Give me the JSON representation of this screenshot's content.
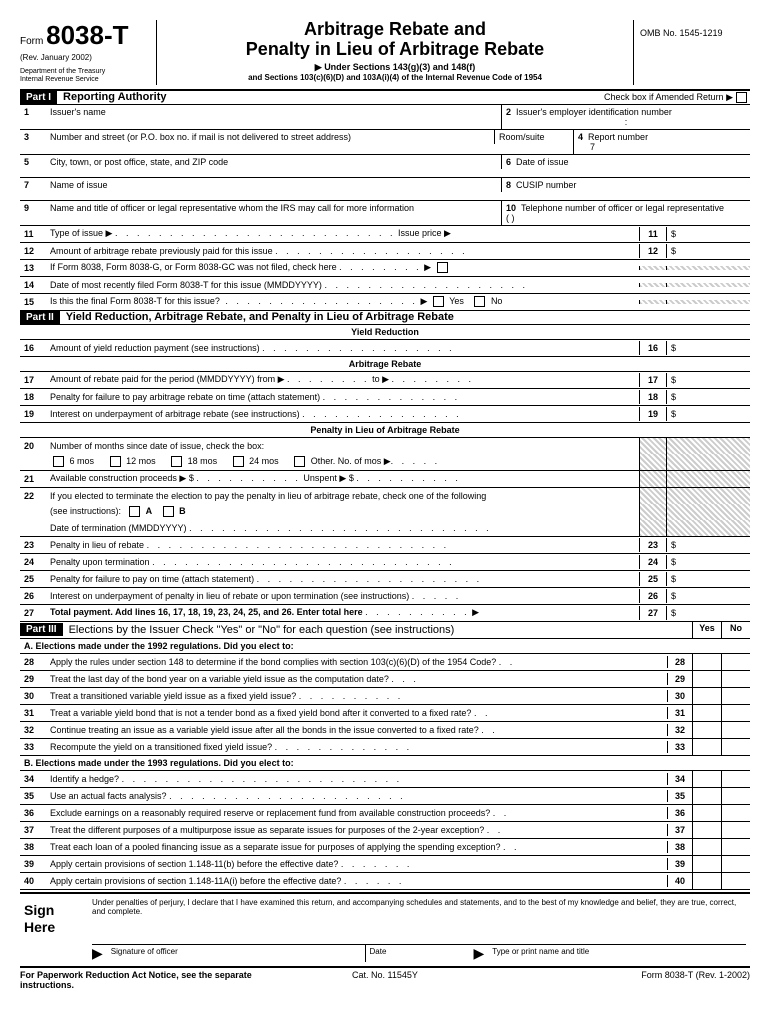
{
  "header": {
    "form": "Form",
    "num": "8038-T",
    "rev": "(Rev. January 2002)",
    "dept": "Department of the Treasury\nInternal Revenue Service",
    "title1": "Arbitrage Rebate and",
    "title2": "Penalty in Lieu of Arbitrage Rebate",
    "sub1": "▶ Under Sections 143(g)(3) and 148(f)",
    "sub2": "and Sections 103(c)(6)(D) and 103A(i)(4) of the Internal Revenue Code of 1954",
    "omb": "OMB No. 1545-1219"
  },
  "p1": {
    "part": "Part I",
    "title": "Reporting Authority",
    "amend": "Check box if Amended Return ▶",
    "r1": {
      "n": "1",
      "l": "Issuer's name"
    },
    "r2": {
      "n": "2",
      "l": "Issuer's employer identification number"
    },
    "r3": {
      "n": "3",
      "l": "Number and street (or P.O. box no. if mail is not delivered to street address)",
      "rm": "Room/suite"
    },
    "r4": {
      "n": "4",
      "l": "Report number",
      "v": "7"
    },
    "r5": {
      "n": "5",
      "l": "City, town, or post office, state, and ZIP code"
    },
    "r6": {
      "n": "6",
      "l": "Date of issue"
    },
    "r7": {
      "n": "7",
      "l": "Name of issue"
    },
    "r8": {
      "n": "8",
      "l": "CUSIP number"
    },
    "r9": {
      "n": "9",
      "l": "Name and title of officer or legal representative whom the IRS may call for more information"
    },
    "r10": {
      "n": "10",
      "l": "Telephone number of officer or legal representative",
      "ph": "(        )"
    },
    "r11": {
      "n": "11",
      "l": "Type of issue ▶",
      "ip": "Issue price  ▶",
      "bn": "11"
    },
    "r12": {
      "n": "12",
      "l": "Amount of arbitrage rebate previously paid for this issue",
      "bn": "12"
    },
    "r13": {
      "n": "13",
      "l": "If Form 8038, Form 8038-G, or Form 8038-GC was not filed, check here"
    },
    "r14": {
      "n": "14",
      "l": "Date of most recently filed Form 8038-T for this issue (MMDDYYYY)"
    },
    "r15": {
      "n": "15",
      "l": "Is this the final Form 8038-T for this issue?",
      "y": "Yes",
      "no": "No"
    }
  },
  "p2": {
    "part": "Part II",
    "title": "Yield Reduction, Arbitrage Rebate, and Penalty in Lieu of Arbitrage Rebate",
    "s1": "Yield Reduction",
    "s2": "Arbitrage Rebate",
    "s3": "Penalty in Lieu of Arbitrage Rebate",
    "r16": {
      "n": "16",
      "l": "Amount of yield reduction payment (see instructions)",
      "bn": "16"
    },
    "r17": {
      "n": "17",
      "l": "Amount of rebate paid for the period (MMDDYYYY) from ▶",
      "to": "to ▶",
      "bn": "17"
    },
    "r18": {
      "n": "18",
      "l": "Penalty for failure to pay arbitrage rebate on time (attach statement)",
      "bn": "18"
    },
    "r19": {
      "n": "19",
      "l": "Interest on underpayment of arbitrage rebate (see instructions)",
      "bn": "19"
    },
    "r20": {
      "n": "20",
      "l": "Number of months since date of issue, check the box:",
      "m6": "6 mos",
      "m12": "12 mos",
      "m18": "18 mos",
      "m24": "24 mos",
      "mo": "Other. No. of mos ▶"
    },
    "r21": {
      "n": "21",
      "l": "Available construction proceeds  ▶ $",
      "un": "Unspent ▶  $"
    },
    "r22": {
      "n": "22",
      "l": "If you elected to terminate the election to pay the penalty in lieu of arbitrage rebate, check one of the following",
      "si": "(see instructions):",
      "a": "A",
      "b": "B",
      "dt": "Date of termination (MMDDYYYY)"
    },
    "r23": {
      "n": "23",
      "l": "Penalty in lieu of rebate",
      "bn": "23"
    },
    "r24": {
      "n": "24",
      "l": "Penalty upon termination",
      "bn": "24"
    },
    "r25": {
      "n": "25",
      "l": "Penalty for failure to pay on time (attach statement)",
      "bn": "25"
    },
    "r26": {
      "n": "26",
      "l": "Interest on underpayment of penalty in lieu of rebate or upon termination (see instructions)",
      "bn": "26"
    },
    "r27": {
      "n": "27",
      "l": "Total payment. Add lines 16, 17, 18, 19, 23, 24, 25, and 26. Enter total here",
      "bn": "27"
    }
  },
  "p3": {
    "part": "Part III",
    "title": "Elections by the Issuer Check \"Yes\" or \"No\" for each question (see instructions)",
    "yes": "Yes",
    "no": "No",
    "a": "A. Elections made under the 1992 regulations. Did you elect to:",
    "b": "B. Elections made under the 1993 regulations. Did you elect to:",
    "q": [
      {
        "n": "28",
        "l": "Apply the rules under section 148 to determine if the bond complies with section 103(c)(6)(D) of the 1954 Code?"
      },
      {
        "n": "29",
        "l": "Treat the last day of the bond year on a variable yield issue as the computation date?"
      },
      {
        "n": "30",
        "l": "Treat a transitioned variable yield issue as a fixed yield issue?"
      },
      {
        "n": "31",
        "l": "Treat a variable yield bond that is not a tender bond as a fixed yield bond after it converted to a fixed rate?"
      },
      {
        "n": "32",
        "l": "Continue treating an issue as a variable yield issue after all the bonds in the issue converted to a fixed rate?"
      },
      {
        "n": "33",
        "l": "Recompute the yield on a transitioned fixed yield issue?"
      },
      {
        "n": "34",
        "l": "Identify a hedge?"
      },
      {
        "n": "35",
        "l": "Use an actual facts analysis?"
      },
      {
        "n": "36",
        "l": "Exclude earnings on a reasonably required reserve or replacement fund from available construction proceeds?"
      },
      {
        "n": "37",
        "l": "Treat the different purposes of a multipurpose issue as separate issues for purposes of the 2-year exception?"
      },
      {
        "n": "38",
        "l": "Treat each loan of a pooled financing issue as a separate issue for purposes of applying the spending exception?"
      },
      {
        "n": "39",
        "l": "Apply certain provisions of section 1.148-11(b) before the effective date?"
      },
      {
        "n": "40",
        "l": "Apply certain provisions of section 1.148-11A(i) before the effective date?"
      }
    ]
  },
  "sign": {
    "h": "Sign\nHere",
    "decl": "Under penalties of perjury, I declare that I have examined this return, and accompanying schedules and statements, and to the best of my knowledge and belief, they are true, correct, and complete.",
    "s1": "Signature of officer",
    "s2": "Date",
    "s3": "Type or print name and title"
  },
  "footer": {
    "l": "For Paperwork Reduction Act Notice, see the separate instructions.",
    "c": "Cat. No. 11545Y",
    "r": "Form 8038-T (Rev. 1-2002)"
  }
}
